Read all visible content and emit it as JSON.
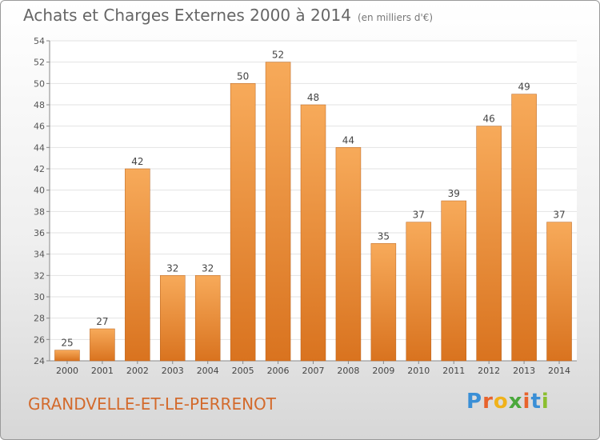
{
  "chart_data": {
    "type": "bar",
    "title": "Achats et Charges Externes 2000 à 2014",
    "unit_note": "(en milliers d'€)",
    "categories": [
      "2000",
      "2001",
      "2002",
      "2003",
      "2004",
      "2005",
      "2006",
      "2007",
      "2008",
      "2009",
      "2010",
      "2011",
      "2012",
      "2013",
      "2014"
    ],
    "values": [
      25,
      27,
      42,
      32,
      32,
      50,
      52,
      48,
      44,
      35,
      37,
      39,
      46,
      49,
      37
    ],
    "ylim": [
      24,
      54
    ],
    "yticks": [
      24,
      26,
      28,
      30,
      32,
      34,
      36,
      38,
      40,
      42,
      44,
      46,
      48,
      50,
      52,
      54
    ],
    "grid": true,
    "bar_color": "#f0913a",
    "bar_color_light": "#f7aa5a",
    "bar_color_dark": "#d9731f"
  },
  "footer": {
    "commune": "GRANDVELLE-ET-LE-PERRENOT",
    "brand_letters": [
      "P",
      "r",
      "o",
      "x",
      "i",
      "t",
      "i"
    ],
    "brand_colors": [
      "#3a8fd6",
      "#e8632c",
      "#f0b21a",
      "#4aa83c",
      "#e8632c",
      "#3a8fd6",
      "#8bbf2f"
    ]
  }
}
